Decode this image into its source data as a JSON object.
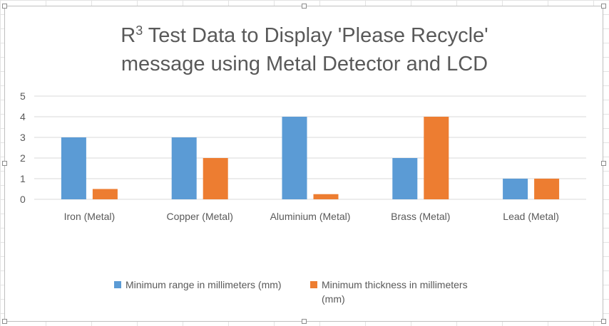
{
  "chart_data": {
    "type": "bar",
    "title_main": "R",
    "title_sup": "3",
    "title_line1_rest": " Test Data to Display 'Please Recycle'",
    "title_line2": "message using Metal Detector and LCD",
    "categories": [
      "Iron (Metal)",
      "Copper (Metal)",
      "Aluminium (Metal)",
      "Brass (Metal)",
      "Lead (Metal)"
    ],
    "series": [
      {
        "name": "Minimum range in millimeters (mm)",
        "color": "#5b9bd5",
        "values": [
          3,
          3,
          4,
          2,
          1
        ]
      },
      {
        "name": "Minimum thickness in millimeters (mm)",
        "color": "#ed7d31",
        "values": [
          0.5,
          2,
          0.25,
          4,
          1
        ]
      }
    ],
    "y_ticks": [
      "0",
      "1",
      "2",
      "3",
      "4",
      "5"
    ],
    "ylim": [
      0,
      5
    ],
    "grid": true,
    "legend_position": "bottom",
    "gridline_color": "#d9d9d9",
    "text_color": "#595959"
  }
}
